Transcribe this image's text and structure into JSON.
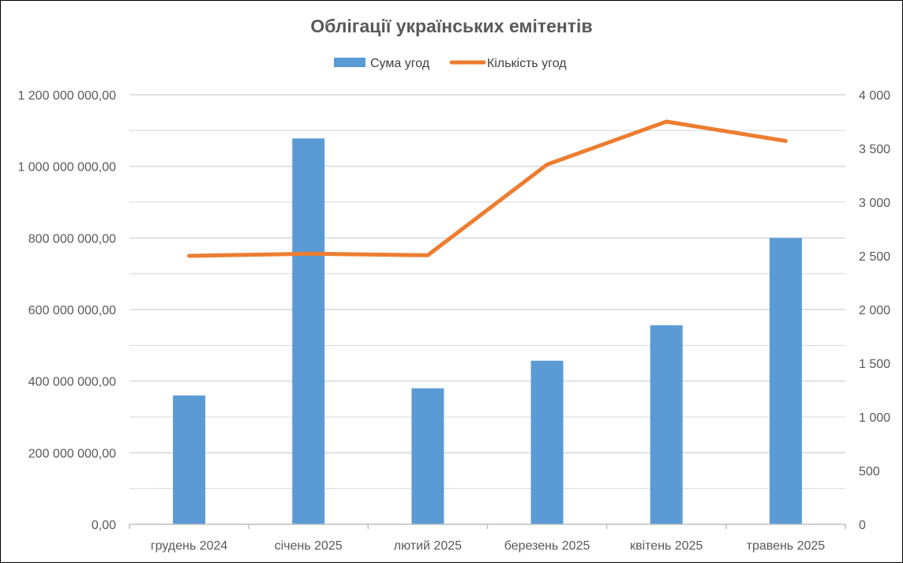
{
  "chart_data": {
    "type": "bar",
    "title": "Облігації українських емітентів",
    "categories": [
      "грудень 2024",
      "січень 2025",
      "лютий 2025",
      "березень 2025",
      "квітень 2025",
      "травень 2025"
    ],
    "series": [
      {
        "name": "Сума угод",
        "type": "bar",
        "axis": "left",
        "color": "#5B9BD5",
        "values": [
          360000000,
          1078000000,
          380000000,
          457000000,
          556000000,
          800000000
        ]
      },
      {
        "name": "Кількість угод",
        "type": "line",
        "axis": "right",
        "color": "#ED7D31",
        "values": [
          2500,
          2520,
          2505,
          3350,
          3750,
          3570
        ]
      }
    ],
    "y_left": {
      "ylim": [
        0,
        1200000000
      ],
      "ticks": [
        0,
        200000000,
        400000000,
        600000000,
        800000000,
        1000000000,
        1200000000
      ],
      "tick_labels": [
        "0,00",
        "200 000 000,00",
        "400 000 000,00",
        "600 000 000,00",
        "800 000 000,00",
        "1 000 000 000,00",
        "1 200 000 000,00"
      ]
    },
    "y_right": {
      "ylim": [
        0,
        4000
      ],
      "ticks": [
        0,
        500,
        1000,
        1500,
        2000,
        2500,
        3000,
        3500,
        4000
      ],
      "tick_labels": [
        "0",
        "500",
        "1 000",
        "1 500",
        "2 000",
        "2 500",
        "3 000",
        "3 500",
        "4 000"
      ]
    },
    "grid": true,
    "legend_position": "top"
  },
  "colors": {
    "grid": "#D9D9D9",
    "axis": "#BFBFBF"
  }
}
